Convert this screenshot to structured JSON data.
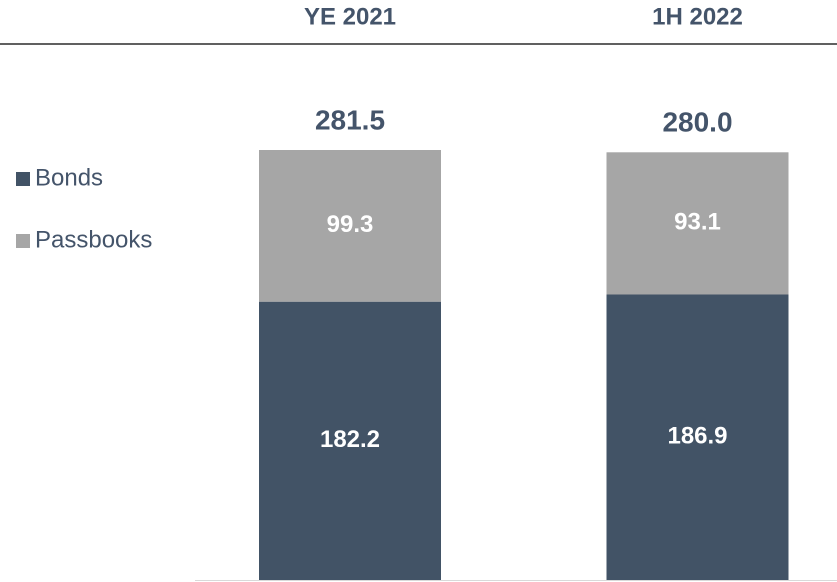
{
  "chart_data": {
    "type": "stacked-bar",
    "categories": [
      "YE 2021",
      "1H 2022"
    ],
    "series": [
      {
        "name": "Bonds",
        "color": "#425366",
        "values": [
          182.2,
          186.9
        ]
      },
      {
        "name": "Passbooks",
        "color": "#a6a6a6",
        "values": [
          99.3,
          93.1
        ]
      }
    ],
    "totals": {
      "values": [
        281.5,
        280
      ],
      "value_labels": [
        "281.5",
        "280.0"
      ]
    },
    "legend": "left"
  }
}
